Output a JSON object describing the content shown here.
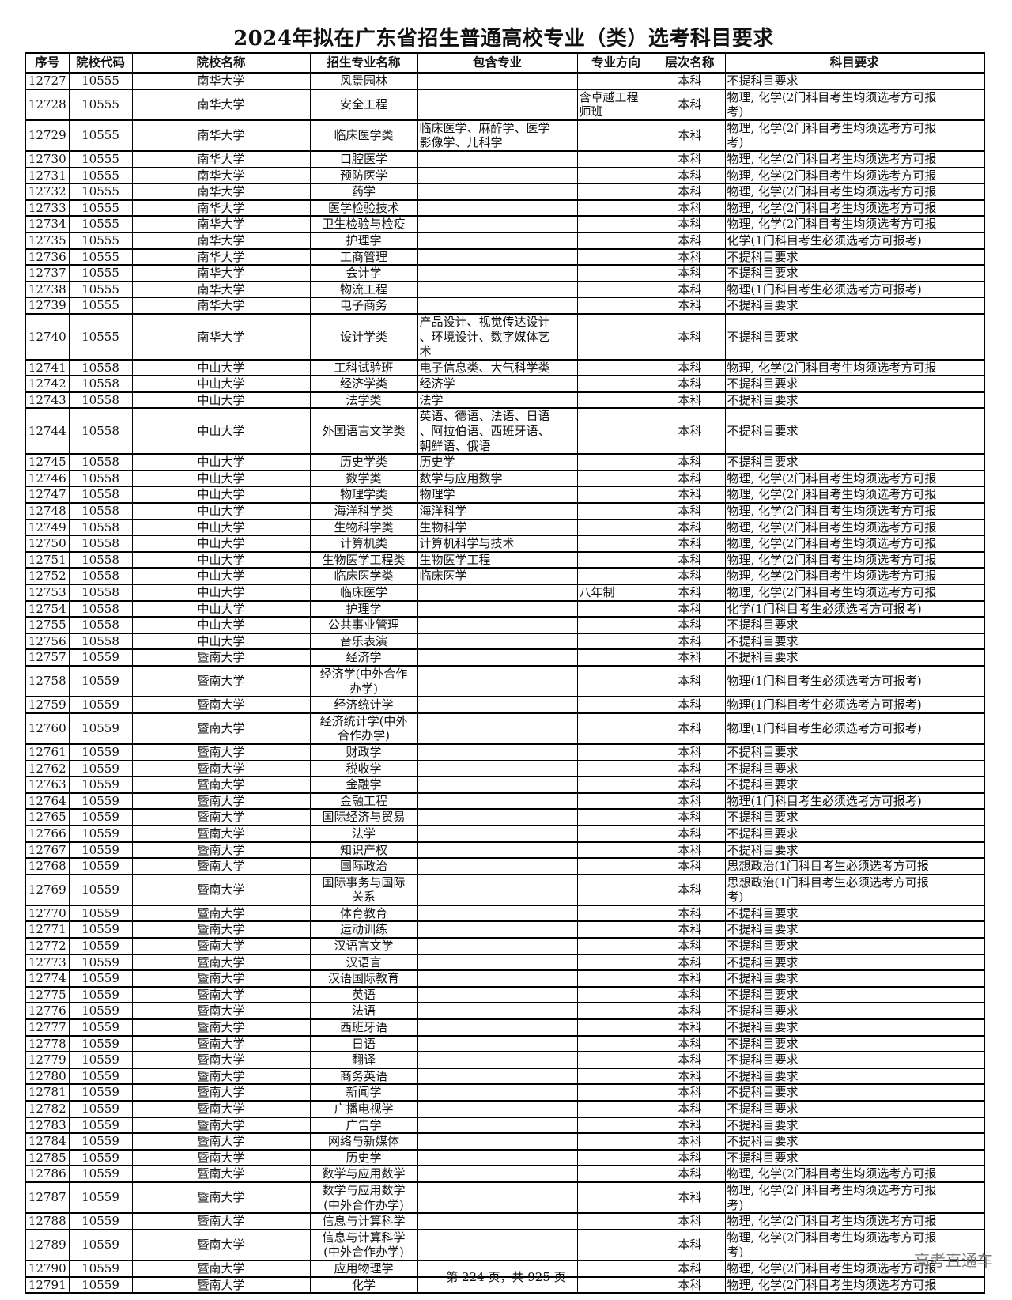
{
  "title": "2024年拟在广东省招生普通高校专业（类）选考科目要求",
  "columns": [
    "序号",
    "院校代码",
    "院校名称",
    "招生专业名称",
    "包含专业",
    "专业方向",
    "层次名称",
    "科目要求"
  ],
  "rows": [
    [
      "12727",
      "10555",
      "南华大学",
      "风景园林",
      "",
      "",
      "本科",
      "不提科目要求"
    ],
    [
      "12728",
      "10555",
      "南华大学",
      "安全工程",
      "",
      "含卓越工程\n师班",
      "本科",
      "物理, 化学(2门科目考生均须选考方可报\n考)"
    ],
    [
      "12729",
      "10555",
      "南华大学",
      "临床医学类",
      "临床医学、麻醉学、医学\n影像学、儿科学",
      "",
      "本科",
      "物理, 化学(2门科目考生均须选考方可报\n考)"
    ],
    [
      "12730",
      "10555",
      "南华大学",
      "口腔医学",
      "",
      "",
      "本科",
      "物理, 化学(2门科目考生均须选考方可报"
    ],
    [
      "12731",
      "10555",
      "南华大学",
      "预防医学",
      "",
      "",
      "本科",
      "物理, 化学(2门科目考生均须选考方可报"
    ],
    [
      "12732",
      "10555",
      "南华大学",
      "药学",
      "",
      "",
      "本科",
      "物理, 化学(2门科目考生均须选考方可报"
    ],
    [
      "12733",
      "10555",
      "南华大学",
      "医学检验技术",
      "",
      "",
      "本科",
      "物理, 化学(2门科目考生均须选考方可报"
    ],
    [
      "12734",
      "10555",
      "南华大学",
      "卫生检验与检疫",
      "",
      "",
      "本科",
      "物理, 化学(2门科目考生均须选考方可报"
    ],
    [
      "12735",
      "10555",
      "南华大学",
      "护理学",
      "",
      "",
      "本科",
      "化学(1门科目考生必须选考方可报考)"
    ],
    [
      "12736",
      "10555",
      "南华大学",
      "工商管理",
      "",
      "",
      "本科",
      "不提科目要求"
    ],
    [
      "12737",
      "10555",
      "南华大学",
      "会计学",
      "",
      "",
      "本科",
      "不提科目要求"
    ],
    [
      "12738",
      "10555",
      "南华大学",
      "物流工程",
      "",
      "",
      "本科",
      "物理(1门科目考生必须选考方可报考)"
    ],
    [
      "12739",
      "10555",
      "南华大学",
      "电子商务",
      "",
      "",
      "本科",
      "不提科目要求"
    ],
    [
      "12740",
      "10555",
      "南华大学",
      "设计学类",
      "产品设计、视觉传达设计\n、环境设计、数字媒体艺\n术",
      "",
      "本科",
      "不提科目要求"
    ],
    [
      "12741",
      "10558",
      "中山大学",
      "工科试验班",
      "电子信息类、大气科学类",
      "",
      "本科",
      "物理, 化学(2门科目考生均须选考方可报"
    ],
    [
      "12742",
      "10558",
      "中山大学",
      "经济学类",
      "经济学",
      "",
      "本科",
      "不提科目要求"
    ],
    [
      "12743",
      "10558",
      "中山大学",
      "法学类",
      "法学",
      "",
      "本科",
      "不提科目要求"
    ],
    [
      "12744",
      "10558",
      "中山大学",
      "外国语言文学类",
      "英语、德语、法语、日语\n、阿拉伯语、西班牙语、\n朝鲜语、俄语",
      "",
      "本科",
      "不提科目要求"
    ],
    [
      "12745",
      "10558",
      "中山大学",
      "历史学类",
      "历史学",
      "",
      "本科",
      "不提科目要求"
    ],
    [
      "12746",
      "10558",
      "中山大学",
      "数学类",
      "数学与应用数学",
      "",
      "本科",
      "物理, 化学(2门科目考生均须选考方可报"
    ],
    [
      "12747",
      "10558",
      "中山大学",
      "物理学类",
      "物理学",
      "",
      "本科",
      "物理, 化学(2门科目考生均须选考方可报"
    ],
    [
      "12748",
      "10558",
      "中山大学",
      "海洋科学类",
      "海洋科学",
      "",
      "本科",
      "物理, 化学(2门科目考生均须选考方可报"
    ],
    [
      "12749",
      "10558",
      "中山大学",
      "生物科学类",
      "生物科学",
      "",
      "本科",
      "物理, 化学(2门科目考生均须选考方可报"
    ],
    [
      "12750",
      "10558",
      "中山大学",
      "计算机类",
      "计算机科学与技术",
      "",
      "本科",
      "物理, 化学(2门科目考生均须选考方可报"
    ],
    [
      "12751",
      "10558",
      "中山大学",
      "生物医学工程类",
      "生物医学工程",
      "",
      "本科",
      "物理, 化学(2门科目考生均须选考方可报"
    ],
    [
      "12752",
      "10558",
      "中山大学",
      "临床医学类",
      "临床医学",
      "",
      "本科",
      "物理, 化学(2门科目考生均须选考方可报"
    ],
    [
      "12753",
      "10558",
      "中山大学",
      "临床医学",
      "",
      "八年制",
      "本科",
      "物理, 化学(2门科目考生均须选考方可报"
    ],
    [
      "12754",
      "10558",
      "中山大学",
      "护理学",
      "",
      "",
      "本科",
      "化学(1门科目考生必须选考方可报考)"
    ],
    [
      "12755",
      "10558",
      "中山大学",
      "公共事业管理",
      "",
      "",
      "本科",
      "不提科目要求"
    ],
    [
      "12756",
      "10558",
      "中山大学",
      "音乐表演",
      "",
      "",
      "本科",
      "不提科目要求"
    ],
    [
      "12757",
      "10559",
      "暨南大学",
      "经济学",
      "",
      "",
      "本科",
      "不提科目要求"
    ],
    [
      "12758",
      "10559",
      "暨南大学",
      "经济学(中外合作\n办学)",
      "",
      "",
      "本科",
      "物理(1门科目考生必须选考方可报考)"
    ],
    [
      "12759",
      "10559",
      "暨南大学",
      "经济统计学",
      "",
      "",
      "本科",
      "物理(1门科目考生必须选考方可报考)"
    ],
    [
      "12760",
      "10559",
      "暨南大学",
      "经济统计学(中外\n合作办学)",
      "",
      "",
      "本科",
      "物理(1门科目考生必须选考方可报考)"
    ],
    [
      "12761",
      "10559",
      "暨南大学",
      "财政学",
      "",
      "",
      "本科",
      "不提科目要求"
    ],
    [
      "12762",
      "10559",
      "暨南大学",
      "税收学",
      "",
      "",
      "本科",
      "不提科目要求"
    ],
    [
      "12763",
      "10559",
      "暨南大学",
      "金融学",
      "",
      "",
      "本科",
      "不提科目要求"
    ],
    [
      "12764",
      "10559",
      "暨南大学",
      "金融工程",
      "",
      "",
      "本科",
      "物理(1门科目考生必须选考方可报考)"
    ],
    [
      "12765",
      "10559",
      "暨南大学",
      "国际经济与贸易",
      "",
      "",
      "本科",
      "不提科目要求"
    ],
    [
      "12766",
      "10559",
      "暨南大学",
      "法学",
      "",
      "",
      "本科",
      "不提科目要求"
    ],
    [
      "12767",
      "10559",
      "暨南大学",
      "知识产权",
      "",
      "",
      "本科",
      "不提科目要求"
    ],
    [
      "12768",
      "10559",
      "暨南大学",
      "国际政治",
      "",
      "",
      "本科",
      "思想政治(1门科目考生必须选考方可报"
    ],
    [
      "12769",
      "10559",
      "暨南大学",
      "国际事务与国际\n关系",
      "",
      "",
      "本科",
      "思想政治(1门科目考生必须选考方可报\n考)"
    ],
    [
      "12770",
      "10559",
      "暨南大学",
      "体育教育",
      "",
      "",
      "本科",
      "不提科目要求"
    ],
    [
      "12771",
      "10559",
      "暨南大学",
      "运动训练",
      "",
      "",
      "本科",
      "不提科目要求"
    ],
    [
      "12772",
      "10559",
      "暨南大学",
      "汉语言文学",
      "",
      "",
      "本科",
      "不提科目要求"
    ],
    [
      "12773",
      "10559",
      "暨南大学",
      "汉语言",
      "",
      "",
      "本科",
      "不提科目要求"
    ],
    [
      "12774",
      "10559",
      "暨南大学",
      "汉语国际教育",
      "",
      "",
      "本科",
      "不提科目要求"
    ],
    [
      "12775",
      "10559",
      "暨南大学",
      "英语",
      "",
      "",
      "本科",
      "不提科目要求"
    ],
    [
      "12776",
      "10559",
      "暨南大学",
      "法语",
      "",
      "",
      "本科",
      "不提科目要求"
    ],
    [
      "12777",
      "10559",
      "暨南大学",
      "西班牙语",
      "",
      "",
      "本科",
      "不提科目要求"
    ],
    [
      "12778",
      "10559",
      "暨南大学",
      "日语",
      "",
      "",
      "本科",
      "不提科目要求"
    ],
    [
      "12779",
      "10559",
      "暨南大学",
      "翻译",
      "",
      "",
      "本科",
      "不提科目要求"
    ],
    [
      "12780",
      "10559",
      "暨南大学",
      "商务英语",
      "",
      "",
      "本科",
      "不提科目要求"
    ],
    [
      "12781",
      "10559",
      "暨南大学",
      "新闻学",
      "",
      "",
      "本科",
      "不提科目要求"
    ],
    [
      "12782",
      "10559",
      "暨南大学",
      "广播电视学",
      "",
      "",
      "本科",
      "不提科目要求"
    ],
    [
      "12783",
      "10559",
      "暨南大学",
      "广告学",
      "",
      "",
      "本科",
      "不提科目要求"
    ],
    [
      "12784",
      "10559",
      "暨南大学",
      "网络与新媒体",
      "",
      "",
      "本科",
      "不提科目要求"
    ],
    [
      "12785",
      "10559",
      "暨南大学",
      "历史学",
      "",
      "",
      "本科",
      "不提科目要求"
    ],
    [
      "12786",
      "10559",
      "暨南大学",
      "数学与应用数学",
      "",
      "",
      "本科",
      "物理, 化学(2门科目考生均须选考方可报"
    ],
    [
      "12787",
      "10559",
      "暨南大学",
      "数学与应用数学\n(中外合作办学)",
      "",
      "",
      "本科",
      "物理, 化学(2门科目考生均须选考方可报\n考)"
    ],
    [
      "12788",
      "10559",
      "暨南大学",
      "信息与计算科学",
      "",
      "",
      "本科",
      "物理, 化学(2门科目考生均须选考方可报"
    ],
    [
      "12789",
      "10559",
      "暨南大学",
      "信息与计算科学\n(中外合作办学)",
      "",
      "",
      "本科",
      "物理, 化学(2门科目考生均须选考方可报\n考)"
    ],
    [
      "12790",
      "10559",
      "暨南大学",
      "应用物理学",
      "",
      "",
      "本科",
      "物理, 化学(2门科目考生均须选考方可报"
    ],
    [
      "12791",
      "10559",
      "暨南大学",
      "化学",
      "",
      "",
      "本科",
      "物理, 化学(2门科目考生均须选考方可报"
    ]
  ],
  "footer": "第 224 页，共 925 页",
  "watermark": "高考直通车"
}
